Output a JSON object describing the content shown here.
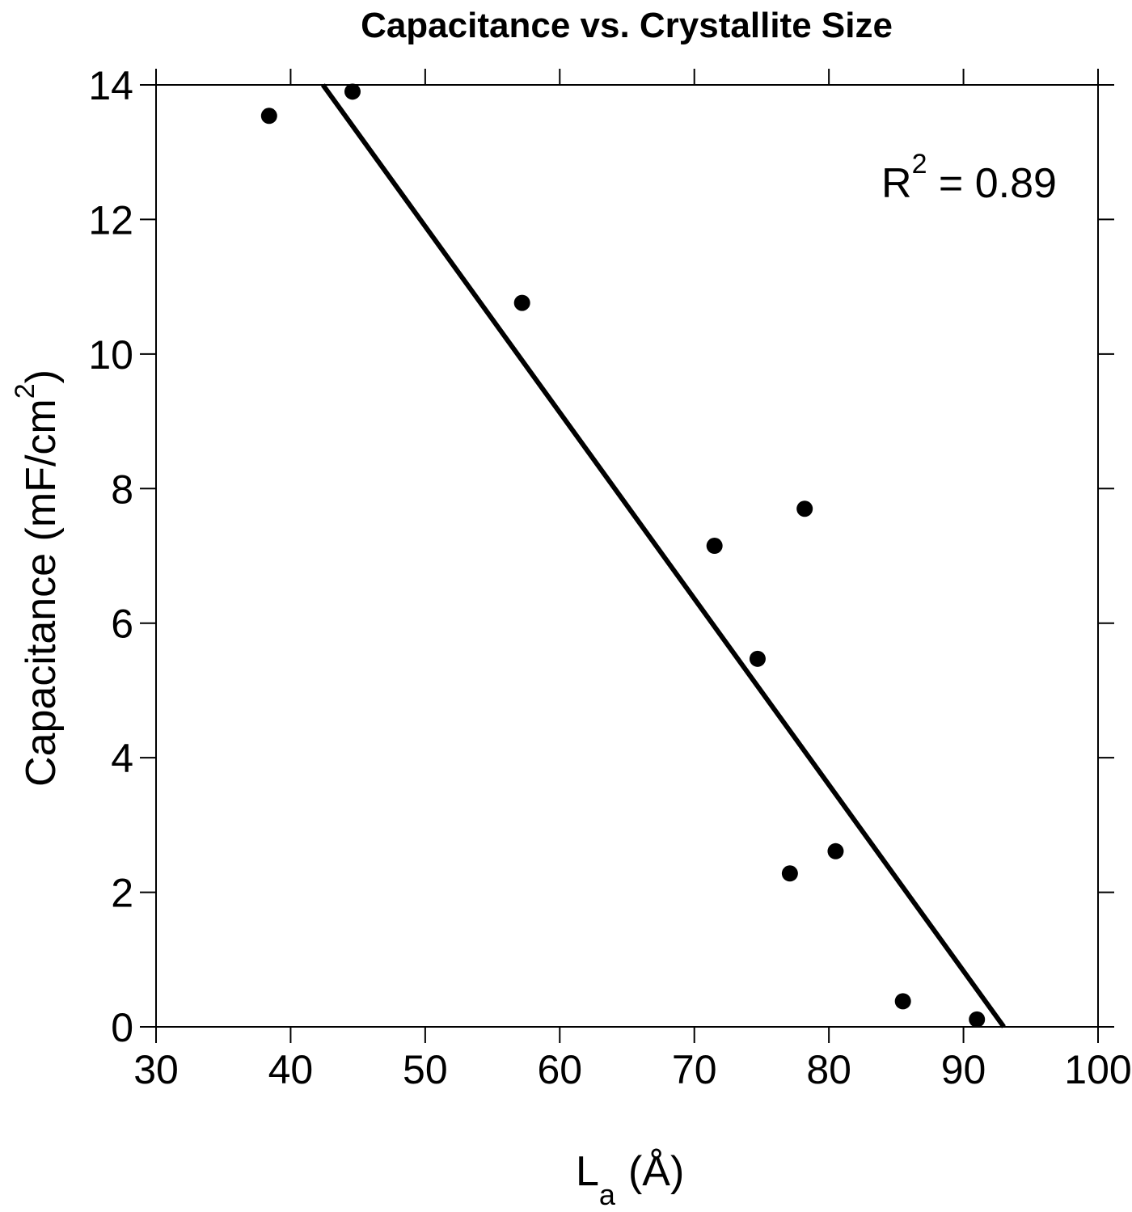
{
  "chart_data": {
    "type": "scatter",
    "title": "Capacitance vs. Crystallite Size",
    "xlabel": "La (Å)",
    "xlabel_main": "L",
    "xlabel_sub": "a",
    "xlabel_unit": "(Å)",
    "ylabel": "Capacitance (mF/cm2)",
    "ylabel_main": "Capacitance (mF/cm",
    "ylabel_sup": "2",
    "ylabel_close": ")",
    "xlim": [
      30,
      100
    ],
    "ylim": [
      0,
      14
    ],
    "xticks": [
      30,
      40,
      50,
      60,
      70,
      80,
      90,
      100
    ],
    "yticks": [
      0,
      2,
      4,
      6,
      8,
      10,
      12,
      14
    ],
    "grid": false,
    "series": [
      {
        "name": "data",
        "marker": "filled-circle",
        "color": "#000000",
        "points": [
          {
            "x": 38.4,
            "y": 13.54
          },
          {
            "x": 44.6,
            "y": 13.9
          },
          {
            "x": 57.2,
            "y": 10.76
          },
          {
            "x": 71.5,
            "y": 7.15
          },
          {
            "x": 74.7,
            "y": 5.47
          },
          {
            "x": 77.1,
            "y": 2.28
          },
          {
            "x": 78.2,
            "y": 7.7
          },
          {
            "x": 80.5,
            "y": 2.61
          },
          {
            "x": 85.5,
            "y": 0.38
          },
          {
            "x": 91.0,
            "y": 0.11
          }
        ]
      },
      {
        "name": "linear fit",
        "type": "line",
        "color": "#000000",
        "points": [
          {
            "x": 42.4,
            "y": 14.0
          },
          {
            "x": 93.0,
            "y": 0.0
          }
        ]
      }
    ],
    "annotations": [
      {
        "text": "R2 = 0.89",
        "main": "R",
        "sup": "2",
        "rest": " = 0.89",
        "x": 82,
        "y": 12.5
      }
    ]
  }
}
